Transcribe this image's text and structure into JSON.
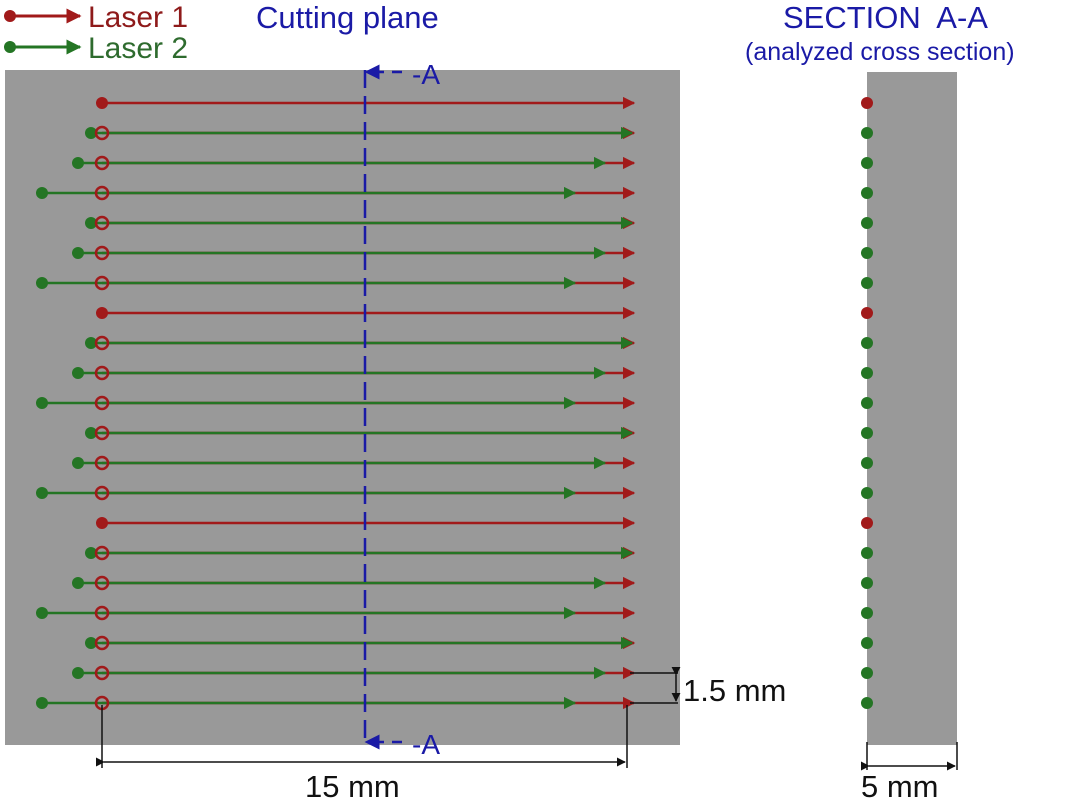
{
  "legend": {
    "laser1_label": "Laser 1",
    "laser2_label": "Laser 2"
  },
  "cutting_plane": {
    "title": "Cutting plane",
    "marker_top": "-A",
    "marker_bottom": "-A"
  },
  "section": {
    "title": "SECTION  A-A",
    "subtitle": "(analyzed cross section)"
  },
  "dimensions": {
    "length": "15 mm",
    "spacing": "1.5 mm",
    "width": "5 mm"
  },
  "colors": {
    "laser1": "#a11a1a",
    "laser2": "#247524",
    "plate": "#999999",
    "cutting_plane": "#1a1aa6",
    "dimension": "#111111"
  },
  "tracks": [
    "L1",
    "L2",
    "L2",
    "L2-long",
    "L2",
    "L2",
    "L2-long",
    "L1",
    "L2",
    "L2",
    "L2-long",
    "L2",
    "L2",
    "L2-long",
    "L1",
    "L2",
    "L2",
    "L2-long",
    "L2",
    "L2",
    "L2-long"
  ]
}
